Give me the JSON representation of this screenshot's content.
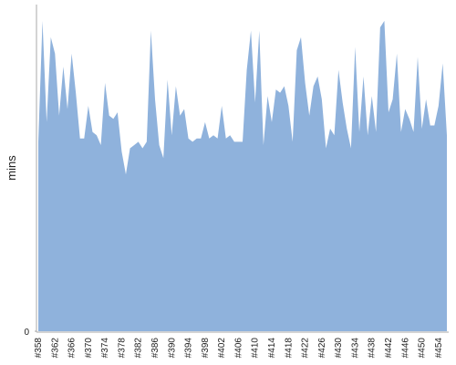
{
  "chart_data": {
    "type": "area",
    "y_label": "mins",
    "color": "#8fb2dc",
    "categories": [
      "#358",
      null,
      null,
      null,
      "#362",
      null,
      null,
      null,
      "#366",
      null,
      null,
      null,
      "#370",
      null,
      null,
      null,
      "#374",
      null,
      null,
      null,
      "#378",
      null,
      null,
      null,
      "#382",
      null,
      null,
      null,
      "#386",
      null,
      null,
      null,
      "#390",
      null,
      null,
      null,
      "#394",
      null,
      null,
      null,
      "#398",
      null,
      null,
      null,
      "#402",
      null,
      null,
      null,
      "#406",
      null,
      null,
      null,
      "#410",
      null,
      null,
      null,
      "#414",
      null,
      null,
      null,
      "#418",
      null,
      null,
      null,
      "#422",
      null,
      null,
      null,
      "#426",
      null,
      null,
      null,
      "#430",
      null,
      null,
      null,
      "#434",
      null,
      null,
      null,
      "#438",
      null,
      null,
      null,
      "#442",
      null,
      null,
      null,
      "#446",
      null,
      null,
      null,
      "#450",
      null,
      null,
      null,
      "#454",
      null,
      null
    ],
    "values": [
      58,
      95,
      64,
      90,
      85,
      66,
      81,
      68,
      85,
      73,
      59,
      59,
      69,
      61,
      60,
      57,
      76,
      66,
      65,
      67,
      55,
      48,
      56,
      57,
      58,
      56,
      58,
      92,
      71,
      57,
      53,
      77,
      60,
      75,
      66,
      68,
      59,
      58,
      59,
      59,
      64,
      59,
      60,
      59,
      69,
      59,
      60,
      58,
      58,
      58,
      80,
      92,
      70,
      92,
      57,
      72,
      64,
      74,
      73,
      75,
      69,
      58,
      86,
      90,
      76,
      66,
      75,
      78,
      71,
      56,
      62,
      60,
      80,
      70,
      62,
      56,
      87,
      61,
      78,
      60,
      72,
      61,
      93,
      95,
      67,
      71,
      85,
      61,
      68,
      65,
      61,
      84,
      62,
      71,
      63,
      63,
      69,
      82,
      60
    ],
    "ylim": [
      0,
      100
    ],
    "yticks": [
      0
    ]
  }
}
